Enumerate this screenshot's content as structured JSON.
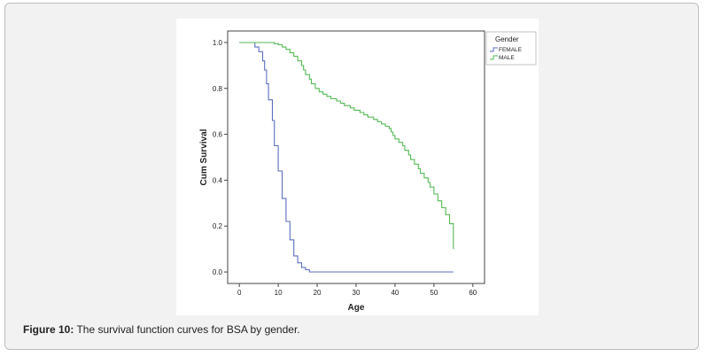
{
  "caption": {
    "label": "Figure 10:",
    "text": " The survival function curves for BSA by gender."
  },
  "chart_data": {
    "type": "line",
    "step": true,
    "title": "",
    "xlabel": "Age",
    "ylabel": "Cum Survival",
    "xlim": [
      -3,
      63
    ],
    "ylim": [
      -0.05,
      1.05
    ],
    "xticks": [
      0,
      10,
      20,
      30,
      40,
      50,
      60
    ],
    "yticks": [
      0.0,
      0.2,
      0.4,
      0.6,
      0.8,
      1.0
    ],
    "ytick_labels": [
      "0.0",
      "0.2",
      "0.4",
      "0.6",
      "0.8",
      "1.0"
    ],
    "grid": false,
    "legend": {
      "title": "Gender",
      "placement": "right"
    },
    "series": [
      {
        "name": "FEMALE",
        "color": "#5b6fbf",
        "points": [
          [
            0,
            1.0
          ],
          [
            4,
            1.0
          ],
          [
            4,
            0.98
          ],
          [
            5,
            0.98
          ],
          [
            5,
            0.96
          ],
          [
            6,
            0.96
          ],
          [
            6,
            0.92
          ],
          [
            6.5,
            0.92
          ],
          [
            6.5,
            0.88
          ],
          [
            7,
            0.88
          ],
          [
            7,
            0.82
          ],
          [
            7.5,
            0.82
          ],
          [
            7.5,
            0.75
          ],
          [
            8.5,
            0.75
          ],
          [
            8.5,
            0.66
          ],
          [
            9,
            0.66
          ],
          [
            9,
            0.55
          ],
          [
            10,
            0.55
          ],
          [
            10,
            0.44
          ],
          [
            11,
            0.44
          ],
          [
            11,
            0.32
          ],
          [
            12,
            0.32
          ],
          [
            12,
            0.22
          ],
          [
            13,
            0.22
          ],
          [
            13,
            0.14
          ],
          [
            14,
            0.14
          ],
          [
            14,
            0.07
          ],
          [
            15,
            0.07
          ],
          [
            15,
            0.04
          ],
          [
            16,
            0.04
          ],
          [
            16,
            0.02
          ],
          [
            17,
            0.02
          ],
          [
            17,
            0.01
          ],
          [
            18,
            0.01
          ],
          [
            18,
            0.0
          ],
          [
            55,
            0.0
          ]
        ]
      },
      {
        "name": "MALE",
        "color": "#55b955",
        "points": [
          [
            0,
            1.0
          ],
          [
            9,
            1.0
          ],
          [
            9,
            0.995
          ],
          [
            10,
            0.995
          ],
          [
            10,
            0.99
          ],
          [
            11,
            0.99
          ],
          [
            11,
            0.98
          ],
          [
            12,
            0.98
          ],
          [
            12,
            0.97
          ],
          [
            13,
            0.97
          ],
          [
            13,
            0.955
          ],
          [
            14,
            0.955
          ],
          [
            14,
            0.94
          ],
          [
            15,
            0.94
          ],
          [
            15,
            0.92
          ],
          [
            16,
            0.92
          ],
          [
            16,
            0.9
          ],
          [
            16.5,
            0.9
          ],
          [
            16.5,
            0.88
          ],
          [
            17,
            0.88
          ],
          [
            17,
            0.86
          ],
          [
            18,
            0.86
          ],
          [
            18,
            0.84
          ],
          [
            18.5,
            0.84
          ],
          [
            18.5,
            0.82
          ],
          [
            19.5,
            0.82
          ],
          [
            19.5,
            0.8
          ],
          [
            20.5,
            0.8
          ],
          [
            20.5,
            0.785
          ],
          [
            21.5,
            0.785
          ],
          [
            21.5,
            0.775
          ],
          [
            22.5,
            0.775
          ],
          [
            22.5,
            0.765
          ],
          [
            23.5,
            0.765
          ],
          [
            23.5,
            0.755
          ],
          [
            25,
            0.755
          ],
          [
            25,
            0.745
          ],
          [
            26,
            0.745
          ],
          [
            26,
            0.735
          ],
          [
            27,
            0.735
          ],
          [
            27,
            0.725
          ],
          [
            28.5,
            0.725
          ],
          [
            28.5,
            0.715
          ],
          [
            29.5,
            0.715
          ],
          [
            29.5,
            0.705
          ],
          [
            31,
            0.705
          ],
          [
            31,
            0.695
          ],
          [
            32,
            0.695
          ],
          [
            32,
            0.685
          ],
          [
            33,
            0.685
          ],
          [
            33,
            0.675
          ],
          [
            34.5,
            0.675
          ],
          [
            34.5,
            0.665
          ],
          [
            35.5,
            0.665
          ],
          [
            35.5,
            0.655
          ],
          [
            36.5,
            0.655
          ],
          [
            36.5,
            0.645
          ],
          [
            37.5,
            0.645
          ],
          [
            37.5,
            0.635
          ],
          [
            38.5,
            0.635
          ],
          [
            38.5,
            0.625
          ],
          [
            39,
            0.625
          ],
          [
            39,
            0.61
          ],
          [
            39.5,
            0.61
          ],
          [
            39.5,
            0.595
          ],
          [
            40,
            0.595
          ],
          [
            40,
            0.58
          ],
          [
            41,
            0.58
          ],
          [
            41,
            0.565
          ],
          [
            42,
            0.565
          ],
          [
            42,
            0.55
          ],
          [
            42.5,
            0.55
          ],
          [
            42.5,
            0.53
          ],
          [
            43.5,
            0.53
          ],
          [
            43.5,
            0.51
          ],
          [
            44,
            0.51
          ],
          [
            44,
            0.49
          ],
          [
            45,
            0.49
          ],
          [
            45,
            0.47
          ],
          [
            46,
            0.47
          ],
          [
            46,
            0.45
          ],
          [
            46.5,
            0.45
          ],
          [
            46.5,
            0.43
          ],
          [
            47.5,
            0.43
          ],
          [
            47.5,
            0.41
          ],
          [
            48.5,
            0.41
          ],
          [
            48.5,
            0.39
          ],
          [
            49,
            0.39
          ],
          [
            49,
            0.37
          ],
          [
            50,
            0.37
          ],
          [
            50,
            0.34
          ],
          [
            51,
            0.34
          ],
          [
            51,
            0.31
          ],
          [
            52,
            0.31
          ],
          [
            52,
            0.28
          ],
          [
            53,
            0.28
          ],
          [
            53,
            0.25
          ],
          [
            54,
            0.25
          ],
          [
            54,
            0.21
          ],
          [
            55,
            0.21
          ],
          [
            55,
            0.1
          ]
        ]
      }
    ]
  }
}
